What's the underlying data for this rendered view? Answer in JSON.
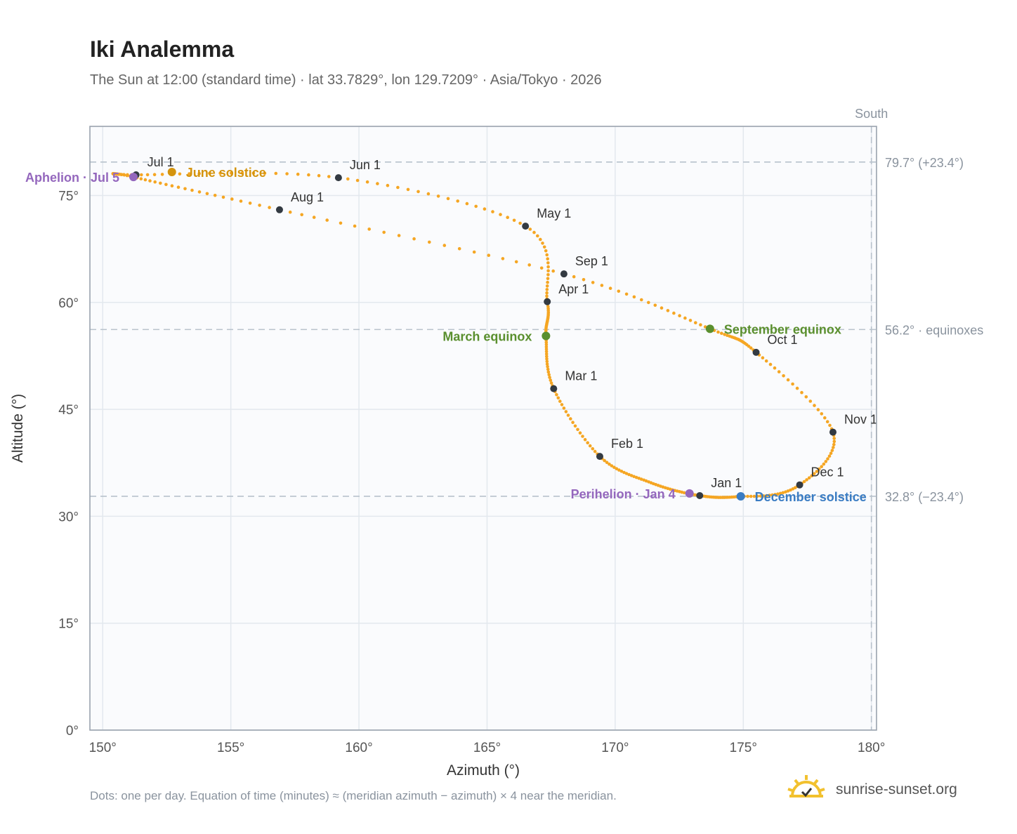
{
  "title": "Iki Analemma",
  "subtitle": "The Sun at 12:00 (standard time) · lat 33.7829°, lon 129.7209° · Asia/Tokyo · 2026",
  "footnote": "Dots: one per day. Equation of time (minutes) ≈ (meridian azimuth − azimuth) × 4 near the meridian.",
  "brand": {
    "name": "sunrise-sunset.org",
    "icon": "sun-logo-icon"
  },
  "colors": {
    "curve": "#f5a623",
    "month_marker": "#333a42",
    "solstice_june": "#d4940e",
    "solstice_december": "#3a7cc3",
    "equinox": "#5a8f2e",
    "apsis": "#9467bd",
    "reference_line": "#b8c2cc",
    "plot_bg": "#fafbfd",
    "grid": "#e3e8ee"
  },
  "chart_data": {
    "type": "scatter",
    "title": "Iki Analemma",
    "xlabel": "Azimuth (°)",
    "ylabel": "Altitude (°)",
    "xlim": [
      149.5,
      180.2
    ],
    "ylim": [
      0,
      84.7
    ],
    "x_ticks": [
      150,
      155,
      160,
      165,
      170,
      175,
      180
    ],
    "x_tick_labels": [
      "150°",
      "155°",
      "160°",
      "165°",
      "170°",
      "175°",
      "180°"
    ],
    "y_ticks": [
      0,
      15,
      30,
      45,
      60,
      75
    ],
    "y_tick_labels": [
      "0°",
      "15°",
      "30°",
      "45°",
      "60°",
      "75°"
    ],
    "grid": true,
    "meridian": {
      "azimuth": 180,
      "label": "South"
    },
    "reference_lines": [
      {
        "altitude": 79.7,
        "label": "79.7° (+23.4°)"
      },
      {
        "altitude": 56.2,
        "label": "56.2° · equinoxes"
      },
      {
        "altitude": 32.8,
        "label": "32.8° (−23.4°)"
      }
    ],
    "daily_path": [
      [
        173.3,
        32.9
      ],
      [
        171.4,
        34.7
      ],
      [
        169.4,
        38.4
      ],
      [
        167.6,
        47.9
      ],
      [
        167.3,
        55.3
      ],
      [
        167.35,
        60.1
      ],
      [
        166.5,
        70.7
      ],
      [
        159.2,
        77.5
      ],
      [
        151.3,
        77.9
      ],
      [
        151.2,
        77.6
      ],
      [
        156.9,
        73.0
      ],
      [
        168.0,
        64.0
      ],
      [
        173.7,
        56.3
      ],
      [
        175.5,
        53.0
      ],
      [
        178.5,
        41.8
      ],
      [
        177.2,
        34.4
      ],
      [
        174.9,
        32.8
      ],
      [
        173.3,
        32.9
      ]
    ],
    "month_markers": [
      {
        "label": "Jan 1",
        "x": 173.3,
        "y": 32.9
      },
      {
        "label": "Feb 1",
        "x": 169.4,
        "y": 38.4
      },
      {
        "label": "Mar 1",
        "x": 167.6,
        "y": 47.9
      },
      {
        "label": "Apr 1",
        "x": 167.35,
        "y": 60.1
      },
      {
        "label": "May 1",
        "x": 166.5,
        "y": 70.7
      },
      {
        "label": "Jun 1",
        "x": 159.2,
        "y": 77.5
      },
      {
        "label": "Jul 1",
        "x": 151.3,
        "y": 77.9
      },
      {
        "label": "Aug 1",
        "x": 156.9,
        "y": 73.0
      },
      {
        "label": "Sep 1",
        "x": 168.0,
        "y": 64.0
      },
      {
        "label": "Oct 1",
        "x": 175.5,
        "y": 53.0
      },
      {
        "label": "Nov 1",
        "x": 178.5,
        "y": 41.8
      },
      {
        "label": "Dec 1",
        "x": 177.2,
        "y": 34.4
      }
    ],
    "special_points": [
      {
        "label": "June solstice",
        "x": 152.7,
        "y": 78.3,
        "kind": "solstice_june"
      },
      {
        "label": "December solstice",
        "x": 174.9,
        "y": 32.8,
        "kind": "solstice_december"
      },
      {
        "label": "March equinox",
        "x": 167.3,
        "y": 55.3,
        "kind": "equinox"
      },
      {
        "label": "September equinox",
        "x": 173.7,
        "y": 56.3,
        "kind": "equinox"
      },
      {
        "label": "Aphelion · Jul 5",
        "x": 151.2,
        "y": 77.6,
        "kind": "apsis"
      },
      {
        "label": "Perihelion · Jan 4",
        "x": 172.9,
        "y": 33.2,
        "kind": "apsis"
      }
    ]
  }
}
